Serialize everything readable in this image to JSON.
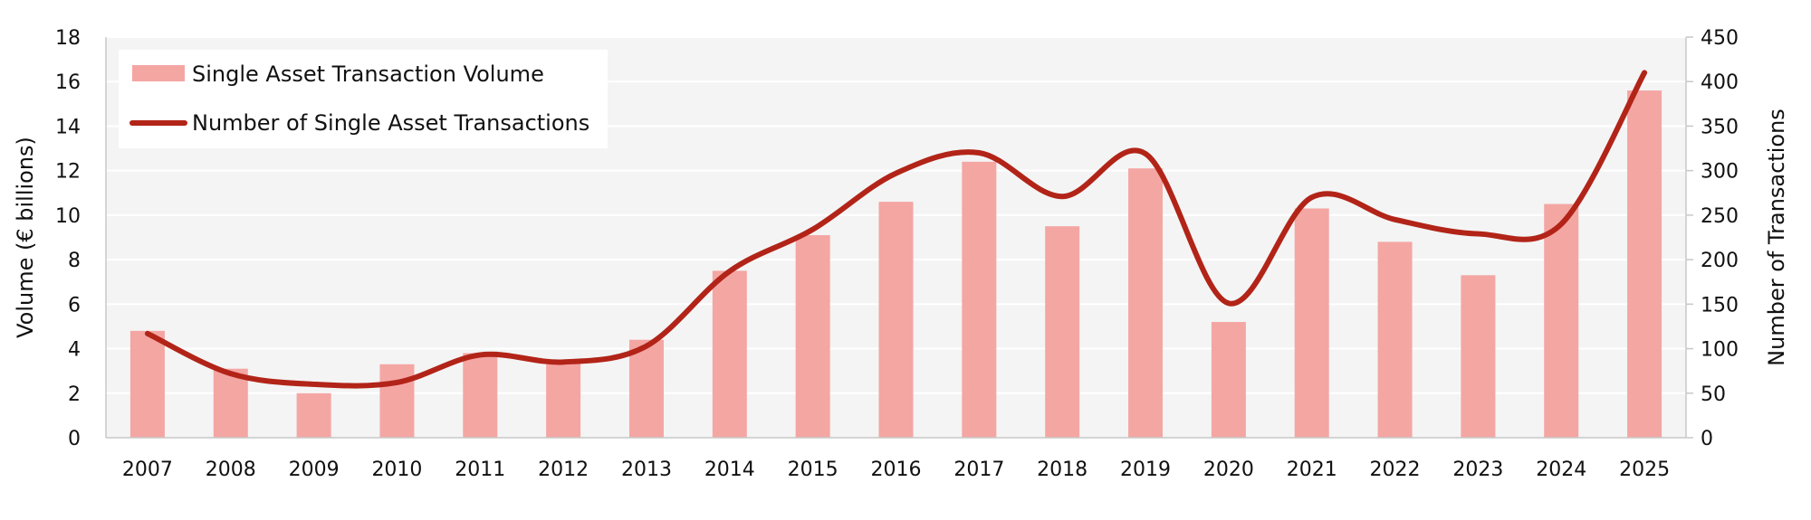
{
  "chart_data": {
    "type": "bar",
    "categories": [
      "2007",
      "2008",
      "2009",
      "2010",
      "2011",
      "2012",
      "2013",
      "2014",
      "2015",
      "2016",
      "2017",
      "2018",
      "2019",
      "2020",
      "2021",
      "2022",
      "2023",
      "2024",
      "2025"
    ],
    "series": [
      {
        "name": "Single Asset Transaction Volume",
        "type": "bar",
        "axis": "left",
        "color": "#f4a6a3",
        "values": [
          4.8,
          3.1,
          2.0,
          3.3,
          3.8,
          3.4,
          4.4,
          7.5,
          9.1,
          10.6,
          12.4,
          9.5,
          12.1,
          5.2,
          10.3,
          8.8,
          7.3,
          10.5,
          15.6
        ]
      },
      {
        "name": "Number of Single Asset Transactions",
        "type": "line",
        "axis": "right",
        "color": "#b22418",
        "values": [
          117,
          72,
          60,
          62,
          93,
          85,
          103,
          187,
          234,
          297,
          320,
          271,
          319,
          151,
          270,
          245,
          229,
          240,
          410
        ]
      }
    ],
    "ylabel": "Volume (€ billions)",
    "y2label": "Number of Transactions",
    "ylim": [
      0,
      18
    ],
    "y2lim": [
      0,
      450
    ],
    "yticks": [
      "0",
      "2",
      "4",
      "6",
      "8",
      "10",
      "12",
      "14",
      "16",
      "18"
    ],
    "y2ticks": [
      "0",
      "50",
      "100",
      "150",
      "200",
      "250",
      "300",
      "350",
      "400",
      "450"
    ],
    "grid": true,
    "legend": "top-left",
    "plot_background": "#f4f4f4"
  }
}
